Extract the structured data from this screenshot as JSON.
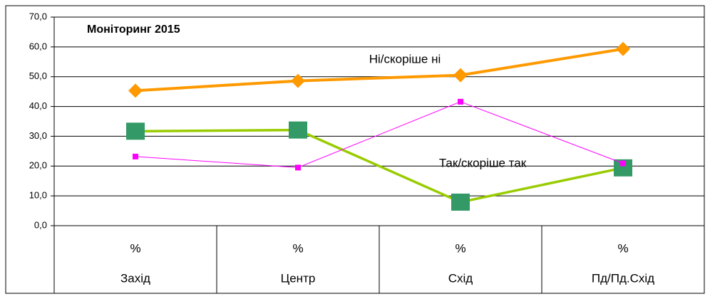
{
  "chart_data": {
    "type": "line",
    "title": "Моніторинг 2015",
    "categories": [
      "Захід",
      "Центр",
      "Схід",
      "Пд/Пд.Схід"
    ],
    "sublabels": [
      "%",
      "%",
      "%",
      "%"
    ],
    "series": [
      {
        "name": "Ні/скоріше ні",
        "color": "#ff9900",
        "marker": "diamond",
        "marker_color": "#ff9900",
        "values": [
          45.3,
          48.6,
          50.5,
          59.3
        ]
      },
      {
        "name": "Так/скоріше так",
        "color": "#99cc00",
        "marker": "square",
        "marker_color": "#339966",
        "values": [
          31.7,
          32.1,
          7.9,
          19.4
        ]
      },
      {
        "color": "#ff00ff",
        "marker": "small-square",
        "marker_color": "#ff00ff",
        "values": [
          23.2,
          19.5,
          41.6,
          20.9
        ]
      }
    ],
    "ylim": [
      0,
      70
    ],
    "yticks": [
      {
        "value": 0,
        "label": "0,0"
      },
      {
        "value": 10,
        "label": "10,0"
      },
      {
        "value": 20,
        "label": "20,0"
      },
      {
        "value": 30,
        "label": "30,0"
      },
      {
        "value": 40,
        "label": "40,0"
      },
      {
        "value": 50,
        "label": "50,0"
      },
      {
        "value": 60,
        "label": "60,0"
      },
      {
        "value": 70,
        "label": "70,0"
      }
    ],
    "grid": true
  }
}
